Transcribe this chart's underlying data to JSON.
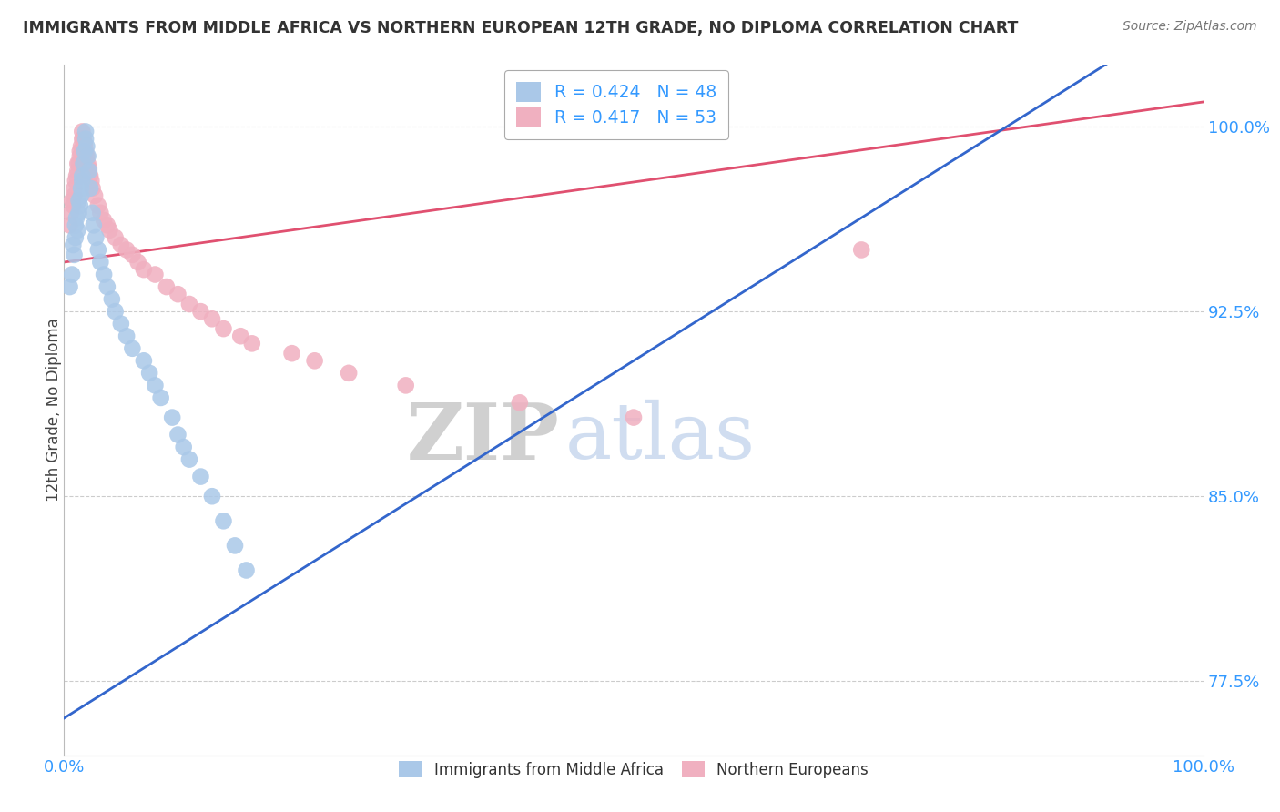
{
  "title": "IMMIGRANTS FROM MIDDLE AFRICA VS NORTHERN EUROPEAN 12TH GRADE, NO DIPLOMA CORRELATION CHART",
  "source": "Source: ZipAtlas.com",
  "ylabel": "12th Grade, No Diploma",
  "y_ticks": [
    0.775,
    0.85,
    0.925,
    1.0
  ],
  "y_tick_labels": [
    "77.5%",
    "85.0%",
    "92.5%",
    "100.0%"
  ],
  "xlim": [
    0.0,
    1.0
  ],
  "ylim": [
    0.745,
    1.025
  ],
  "legend_blue_label": "R = 0.424   N = 48",
  "legend_pink_label": "R = 0.417   N = 53",
  "legend_series1": "Immigrants from Middle Africa",
  "legend_series2": "Northern Europeans",
  "blue_color": "#aac8e8",
  "pink_color": "#f0b0c0",
  "blue_line_color": "#3366cc",
  "pink_line_color": "#e05070",
  "watermark_zip": "ZIP",
  "watermark_atlas": "atlas",
  "background_color": "#ffffff",
  "grid_color": "#cccccc",
  "title_color": "#333333",
  "tick_label_color": "#3399ff",
  "blue_x": [
    0.005,
    0.007,
    0.008,
    0.009,
    0.01,
    0.01,
    0.011,
    0.012,
    0.013,
    0.013,
    0.014,
    0.015,
    0.015,
    0.016,
    0.016,
    0.017,
    0.018,
    0.019,
    0.019,
    0.02,
    0.021,
    0.022,
    0.023,
    0.025,
    0.026,
    0.028,
    0.03,
    0.032,
    0.035,
    0.038,
    0.042,
    0.045,
    0.05,
    0.055,
    0.06,
    0.07,
    0.075,
    0.08,
    0.085,
    0.095,
    0.1,
    0.105,
    0.11,
    0.12,
    0.13,
    0.14,
    0.15,
    0.16
  ],
  "blue_y": [
    0.935,
    0.94,
    0.952,
    0.948,
    0.96,
    0.955,
    0.963,
    0.958,
    0.965,
    0.97,
    0.968,
    0.972,
    0.975,
    0.978,
    0.98,
    0.985,
    0.99,
    0.995,
    0.998,
    0.992,
    0.988,
    0.982,
    0.975,
    0.965,
    0.96,
    0.955,
    0.95,
    0.945,
    0.94,
    0.935,
    0.93,
    0.925,
    0.92,
    0.915,
    0.91,
    0.905,
    0.9,
    0.895,
    0.89,
    0.882,
    0.875,
    0.87,
    0.865,
    0.858,
    0.85,
    0.84,
    0.83,
    0.82
  ],
  "pink_x": [
    0.005,
    0.006,
    0.007,
    0.008,
    0.009,
    0.009,
    0.01,
    0.011,
    0.012,
    0.012,
    0.013,
    0.014,
    0.014,
    0.015,
    0.016,
    0.016,
    0.017,
    0.018,
    0.019,
    0.02,
    0.021,
    0.022,
    0.023,
    0.024,
    0.025,
    0.027,
    0.03,
    0.032,
    0.035,
    0.038,
    0.04,
    0.045,
    0.05,
    0.055,
    0.06,
    0.065,
    0.07,
    0.08,
    0.09,
    0.1,
    0.11,
    0.12,
    0.13,
    0.14,
    0.155,
    0.165,
    0.2,
    0.22,
    0.25,
    0.3,
    0.4,
    0.5,
    0.7
  ],
  "pink_y": [
    0.96,
    0.965,
    0.97,
    0.968,
    0.972,
    0.975,
    0.978,
    0.98,
    0.982,
    0.985,
    0.985,
    0.988,
    0.99,
    0.992,
    0.995,
    0.998,
    0.995,
    0.993,
    0.99,
    0.988,
    0.985,
    0.983,
    0.98,
    0.978,
    0.975,
    0.972,
    0.968,
    0.965,
    0.962,
    0.96,
    0.958,
    0.955,
    0.952,
    0.95,
    0.948,
    0.945,
    0.942,
    0.94,
    0.935,
    0.932,
    0.928,
    0.925,
    0.922,
    0.918,
    0.915,
    0.912,
    0.908,
    0.905,
    0.9,
    0.895,
    0.888,
    0.882,
    0.95
  ]
}
